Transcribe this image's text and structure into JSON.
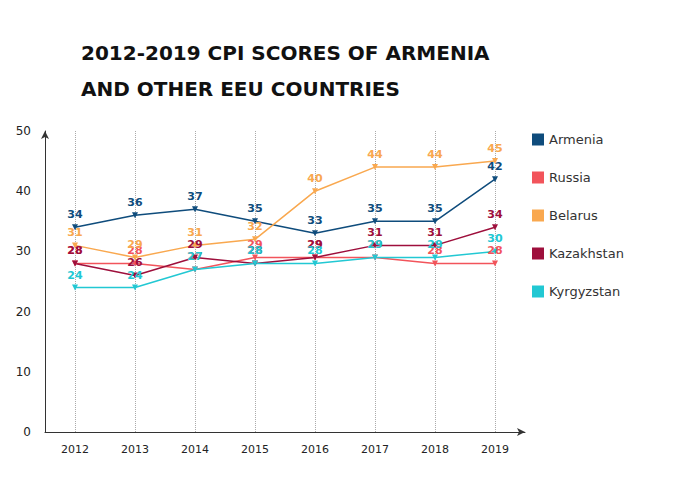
{
  "chart_data": {
    "type": "line",
    "title": "2012-2019 CPI SCORES OF ARMENIA\nAND OTHER EEU COUNTRIES",
    "categories": [
      "2012",
      "2013",
      "2014",
      "2015",
      "2016",
      "2017",
      "2018",
      "2019"
    ],
    "series": [
      {
        "name": "Armenia",
        "color": "#0f4c7c",
        "values": [
          34,
          36,
          37,
          35,
          33,
          35,
          35,
          42
        ]
      },
      {
        "name": "Russia",
        "color": "#f2545b",
        "values": [
          28,
          28,
          27,
          29,
          29,
          29,
          28,
          28
        ]
      },
      {
        "name": "Belarus",
        "color": "#f9a84f",
        "values": [
          31,
          29,
          31,
          32,
          40,
          44,
          44,
          45
        ]
      },
      {
        "name": "Kazakhstan",
        "color": "#9e0f3c",
        "values": [
          28,
          26,
          29,
          28,
          29,
          31,
          31,
          34
        ]
      },
      {
        "name": "Kyrgyzstan",
        "color": "#22c8d3",
        "values": [
          24,
          24,
          27,
          28,
          28,
          29,
          29,
          30
        ]
      }
    ],
    "ylim": [
      0,
      50
    ],
    "yticks": [
      0,
      10,
      20,
      30,
      40,
      50
    ],
    "grid": true,
    "legend": "right",
    "data_labels": true,
    "marker": "triangle"
  }
}
